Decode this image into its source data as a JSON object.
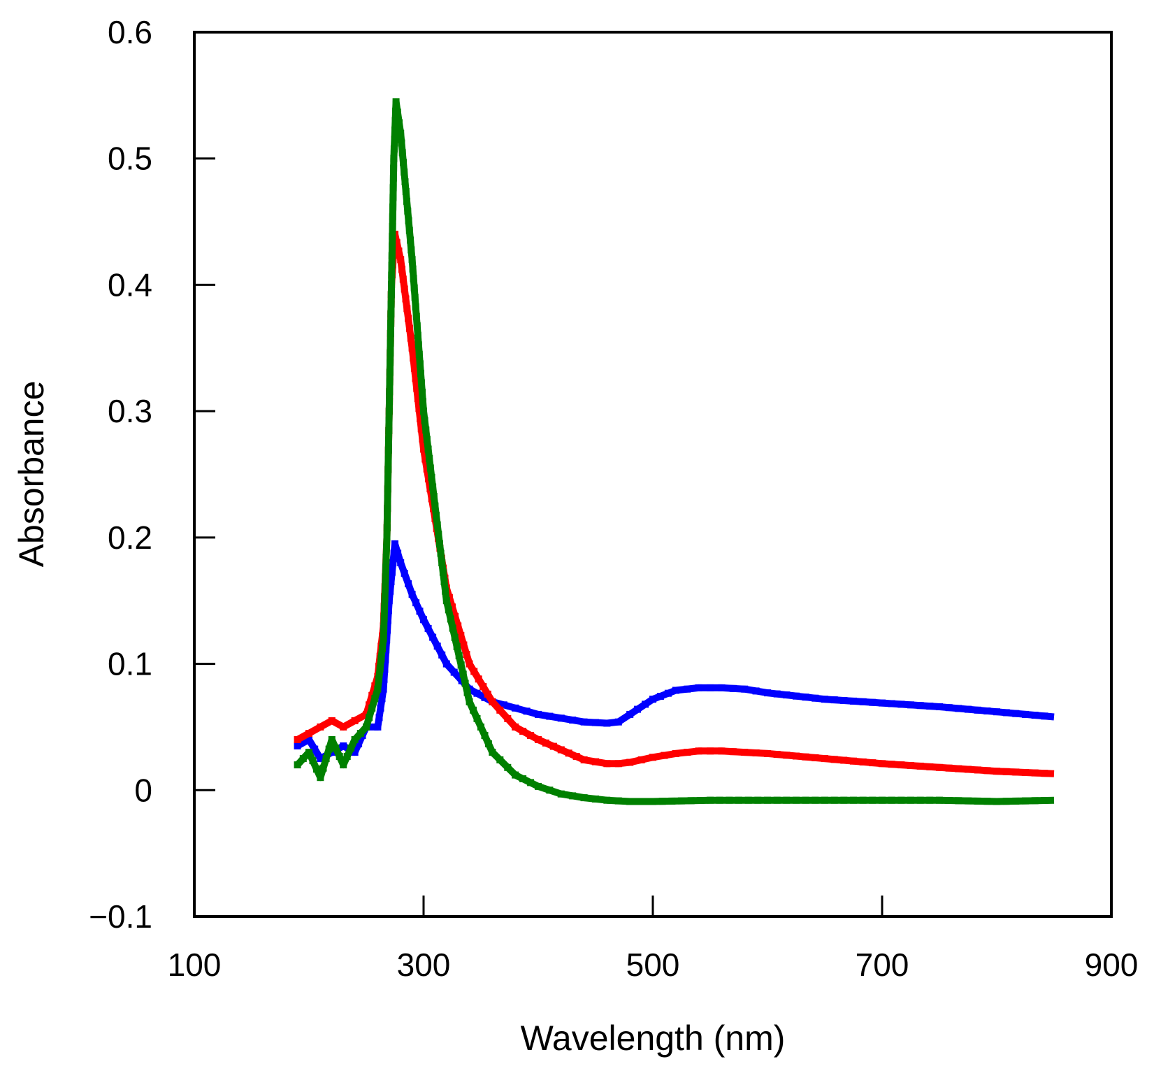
{
  "chart_data": {
    "type": "scatter",
    "title": "",
    "xlabel": "Wavelength (nm)",
    "ylabel": "Absorbance",
    "xlim": [
      100,
      900
    ],
    "ylim": [
      -0.1,
      0.6
    ],
    "xticks": [
      100,
      300,
      500,
      700,
      900
    ],
    "xtick_labels": [
      "100",
      "300",
      "500",
      "700",
      "900"
    ],
    "yticks": [
      -0.1,
      0,
      0.1,
      0.2,
      0.3,
      0.4,
      0.5,
      0.6
    ],
    "ytick_labels": [
      "−0.1",
      "0",
      "0.1",
      "0.2",
      "0.3",
      "0.4",
      "0.5",
      "0.6"
    ],
    "grid": false,
    "legend": "none",
    "series": [
      {
        "name": "blue",
        "color": "#0000ff",
        "x": [
          190,
          200,
          210,
          220,
          230,
          240,
          250,
          260,
          265,
          270,
          275,
          280,
          290,
          300,
          320,
          340,
          360,
          380,
          400,
          420,
          440,
          460,
          470,
          480,
          500,
          520,
          540,
          560,
          580,
          600,
          650,
          700,
          750,
          800,
          850
        ],
        "y": [
          0.035,
          0.04,
          0.025,
          0.03,
          0.035,
          0.03,
          0.05,
          0.05,
          0.08,
          0.15,
          0.195,
          0.18,
          0.155,
          0.135,
          0.1,
          0.08,
          0.07,
          0.065,
          0.06,
          0.057,
          0.054,
          0.053,
          0.054,
          0.06,
          0.072,
          0.079,
          0.081,
          0.081,
          0.08,
          0.077,
          0.072,
          0.069,
          0.066,
          0.062,
          0.058
        ]
      },
      {
        "name": "red",
        "color": "#ff0000",
        "x": [
          190,
          200,
          210,
          220,
          230,
          240,
          250,
          260,
          265,
          268,
          270,
          272,
          275,
          280,
          290,
          300,
          320,
          340,
          360,
          380,
          400,
          420,
          440,
          460,
          470,
          480,
          500,
          520,
          540,
          560,
          580,
          600,
          650,
          700,
          750,
          800,
          850
        ],
        "y": [
          0.04,
          0.045,
          0.05,
          0.055,
          0.05,
          0.055,
          0.06,
          0.09,
          0.13,
          0.2,
          0.3,
          0.4,
          0.44,
          0.42,
          0.35,
          0.27,
          0.16,
          0.1,
          0.07,
          0.05,
          0.04,
          0.032,
          0.024,
          0.021,
          0.021,
          0.022,
          0.026,
          0.029,
          0.031,
          0.031,
          0.03,
          0.029,
          0.025,
          0.021,
          0.018,
          0.015,
          0.013
        ]
      },
      {
        "name": "green",
        "color": "#008000",
        "x": [
          190,
          200,
          210,
          220,
          230,
          240,
          250,
          260,
          265,
          268,
          270,
          272,
          274,
          276,
          280,
          290,
          300,
          320,
          340,
          360,
          380,
          400,
          420,
          440,
          460,
          480,
          500,
          550,
          600,
          650,
          700,
          750,
          800,
          850
        ],
        "y": [
          0.02,
          0.03,
          0.01,
          0.04,
          0.02,
          0.04,
          0.05,
          0.08,
          0.12,
          0.2,
          0.3,
          0.4,
          0.5,
          0.545,
          0.52,
          0.42,
          0.3,
          0.15,
          0.07,
          0.03,
          0.012,
          0.003,
          -0.003,
          -0.006,
          -0.008,
          -0.009,
          -0.009,
          -0.008,
          -0.008,
          -0.008,
          -0.008,
          -0.008,
          -0.009,
          -0.008
        ]
      }
    ]
  }
}
